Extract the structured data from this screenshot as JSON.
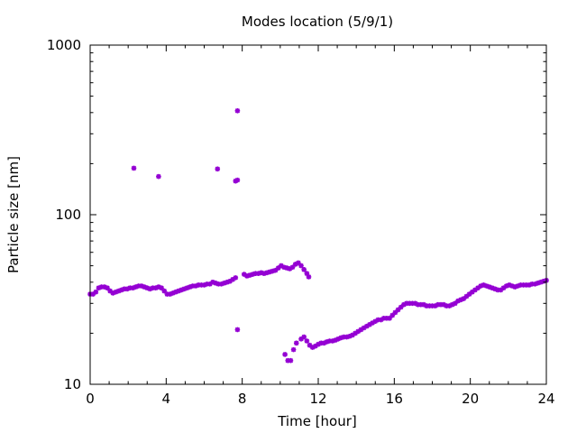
{
  "chart_data": {
    "type": "scatter",
    "title": "Modes location (5/9/1)",
    "xlabel": "Time [hour]",
    "ylabel": "Particle size [nm]",
    "xlim": [
      0,
      24
    ],
    "ylim": [
      10,
      1000
    ],
    "yscale": "log",
    "grid": false,
    "legend": "none",
    "marker_color": "#9400d3",
    "xticks": [
      0,
      4,
      8,
      12,
      16,
      20,
      24
    ],
    "xtick_labels": [
      "0",
      "4",
      "8",
      "12",
      "16",
      "20",
      "24"
    ],
    "yticks": [
      10,
      100,
      1000
    ],
    "ytick_labels": [
      "10",
      "100",
      "1000"
    ],
    "series": [
      {
        "points": [
          [
            0.0,
            34
          ],
          [
            0.15,
            34
          ],
          [
            0.3,
            35
          ],
          [
            0.45,
            37
          ],
          [
            0.6,
            37.5
          ],
          [
            0.75,
            37.5
          ],
          [
            0.9,
            37
          ],
          [
            1.05,
            35.5
          ],
          [
            1.2,
            34.5
          ],
          [
            1.35,
            35
          ],
          [
            1.5,
            35.5
          ],
          [
            1.65,
            36
          ],
          [
            1.8,
            36.5
          ],
          [
            1.95,
            36.5
          ],
          [
            2.1,
            37
          ],
          [
            2.25,
            37
          ],
          [
            2.4,
            37.5
          ],
          [
            2.55,
            38
          ],
          [
            2.7,
            38
          ],
          [
            2.85,
            37.5
          ],
          [
            3.0,
            37
          ],
          [
            3.15,
            36.5
          ],
          [
            3.3,
            37
          ],
          [
            3.45,
            37
          ],
          [
            3.6,
            37.5
          ],
          [
            3.75,
            37
          ],
          [
            3.9,
            35.5
          ],
          [
            4.05,
            34
          ],
          [
            4.2,
            34
          ],
          [
            4.35,
            34.5
          ],
          [
            4.5,
            35
          ],
          [
            4.65,
            35.5
          ],
          [
            4.8,
            36
          ],
          [
            4.95,
            36.5
          ],
          [
            5.1,
            37
          ],
          [
            5.25,
            37.5
          ],
          [
            5.4,
            38
          ],
          [
            5.55,
            38
          ],
          [
            5.7,
            38.5
          ],
          [
            5.85,
            38.5
          ],
          [
            6.0,
            38.5
          ],
          [
            6.15,
            39
          ],
          [
            6.3,
            39
          ],
          [
            6.45,
            40
          ],
          [
            6.6,
            39.5
          ],
          [
            6.75,
            39
          ],
          [
            6.9,
            39
          ],
          [
            7.05,
            39.5
          ],
          [
            7.2,
            40
          ],
          [
            7.35,
            40.5
          ],
          [
            7.5,
            41.5
          ],
          [
            7.65,
            42.5
          ],
          [
            8.1,
            44.5
          ],
          [
            8.25,
            43.5
          ],
          [
            8.4,
            44
          ],
          [
            8.55,
            44.5
          ],
          [
            8.7,
            45
          ],
          [
            8.85,
            45
          ],
          [
            9.0,
            45.5
          ],
          [
            9.15,
            45
          ],
          [
            9.3,
            45.5
          ],
          [
            9.45,
            46
          ],
          [
            9.6,
            46.5
          ],
          [
            9.75,
            47
          ],
          [
            9.9,
            48.5
          ],
          [
            10.05,
            50
          ],
          [
            10.2,
            49
          ],
          [
            10.35,
            48.5
          ],
          [
            10.5,
            48
          ],
          [
            10.65,
            49
          ],
          [
            10.8,
            51
          ],
          [
            10.95,
            52
          ],
          [
            11.1,
            50
          ],
          [
            11.25,
            47.5
          ],
          [
            11.4,
            45
          ],
          [
            11.5,
            43
          ],
          [
            10.25,
            15
          ],
          [
            10.4,
            13.8
          ],
          [
            10.55,
            13.8
          ],
          [
            10.7,
            16
          ],
          [
            10.85,
            17.5
          ],
          [
            11.1,
            18.5
          ],
          [
            11.25,
            19
          ],
          [
            11.4,
            18
          ],
          [
            11.55,
            17
          ],
          [
            11.7,
            16.5
          ],
          [
            11.85,
            16.8
          ],
          [
            12.0,
            17.2
          ],
          [
            12.15,
            17.5
          ],
          [
            12.3,
            17.5
          ],
          [
            12.45,
            17.8
          ],
          [
            12.6,
            18
          ],
          [
            12.75,
            18
          ],
          [
            12.9,
            18.2
          ],
          [
            13.05,
            18.5
          ],
          [
            13.2,
            18.8
          ],
          [
            13.35,
            19
          ],
          [
            13.5,
            19
          ],
          [
            13.65,
            19.2
          ],
          [
            13.8,
            19.5
          ],
          [
            13.95,
            20
          ],
          [
            14.1,
            20.5
          ],
          [
            14.25,
            21
          ],
          [
            14.4,
            21.5
          ],
          [
            14.55,
            22
          ],
          [
            14.7,
            22.5
          ],
          [
            14.85,
            23
          ],
          [
            15.0,
            23.5
          ],
          [
            15.15,
            24
          ],
          [
            15.3,
            24
          ],
          [
            15.45,
            24.5
          ],
          [
            15.6,
            24.5
          ],
          [
            15.75,
            24.5
          ],
          [
            15.9,
            25.5
          ],
          [
            16.05,
            26.5
          ],
          [
            16.2,
            27.5
          ],
          [
            16.35,
            28.5
          ],
          [
            16.5,
            29.5
          ],
          [
            16.65,
            30
          ],
          [
            16.8,
            30
          ],
          [
            16.95,
            30
          ],
          [
            17.1,
            30
          ],
          [
            17.25,
            29.5
          ],
          [
            17.4,
            29.5
          ],
          [
            17.55,
            29.5
          ],
          [
            17.7,
            29
          ],
          [
            17.85,
            29
          ],
          [
            18.0,
            29
          ],
          [
            18.15,
            29
          ],
          [
            18.3,
            29.5
          ],
          [
            18.45,
            29.5
          ],
          [
            18.6,
            29.5
          ],
          [
            18.75,
            29
          ],
          [
            18.9,
            29
          ],
          [
            19.05,
            29.5
          ],
          [
            19.2,
            30
          ],
          [
            19.35,
            31
          ],
          [
            19.5,
            31.5
          ],
          [
            19.65,
            32
          ],
          [
            19.8,
            33
          ],
          [
            19.95,
            34
          ],
          [
            20.1,
            35
          ],
          [
            20.25,
            36
          ],
          [
            20.4,
            37
          ],
          [
            20.55,
            38
          ],
          [
            20.7,
            38.5
          ],
          [
            20.85,
            38
          ],
          [
            21.0,
            37.5
          ],
          [
            21.15,
            37
          ],
          [
            21.3,
            36.5
          ],
          [
            21.45,
            36
          ],
          [
            21.6,
            36
          ],
          [
            21.75,
            37
          ],
          [
            21.9,
            38
          ],
          [
            22.05,
            38.5
          ],
          [
            22.2,
            38
          ],
          [
            22.35,
            37.5
          ],
          [
            22.5,
            38
          ],
          [
            22.65,
            38.5
          ],
          [
            22.8,
            38.5
          ],
          [
            22.95,
            38.5
          ],
          [
            23.1,
            38.5
          ],
          [
            23.25,
            39
          ],
          [
            23.4,
            39
          ],
          [
            23.55,
            39.5
          ],
          [
            23.7,
            40
          ],
          [
            23.85,
            40.5
          ],
          [
            24.0,
            41
          ],
          [
            2.3,
            188
          ],
          [
            3.6,
            168
          ],
          [
            6.7,
            186
          ],
          [
            7.65,
            158
          ],
          [
            7.75,
            160
          ],
          [
            7.75,
            410
          ],
          [
            7.75,
            21
          ]
        ]
      }
    ]
  }
}
